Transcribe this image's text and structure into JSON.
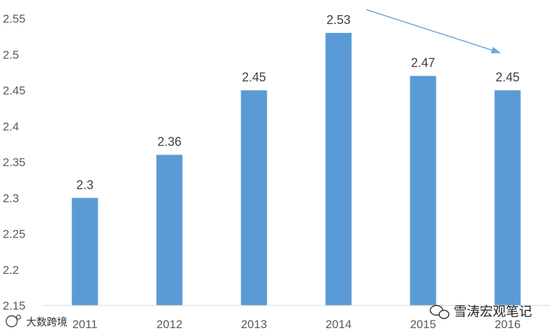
{
  "chart_data": {
    "type": "bar",
    "categories": [
      "2011",
      "2012",
      "2013",
      "2014",
      "2015",
      "2016"
    ],
    "values": [
      2.3,
      2.36,
      2.45,
      2.53,
      2.47,
      2.45
    ],
    "data_labels": [
      "2.3",
      "2.36",
      "2.45",
      "2.53",
      "2.47",
      "2.45"
    ],
    "yticks": [
      "2.15",
      "2.2",
      "2.25",
      "2.3",
      "2.35",
      "2.4",
      "2.45",
      "2.5",
      "2.55"
    ],
    "ylim": [
      2.15,
      2.55
    ],
    "grid": false,
    "bar_color": "#5B9BD5",
    "arrow_color": "#6FA8DC",
    "annotation": "trend arrow pointing down toward 2016"
  },
  "watermarks": {
    "source": "雪涛宏观笔记",
    "corner": "大数跨境"
  }
}
